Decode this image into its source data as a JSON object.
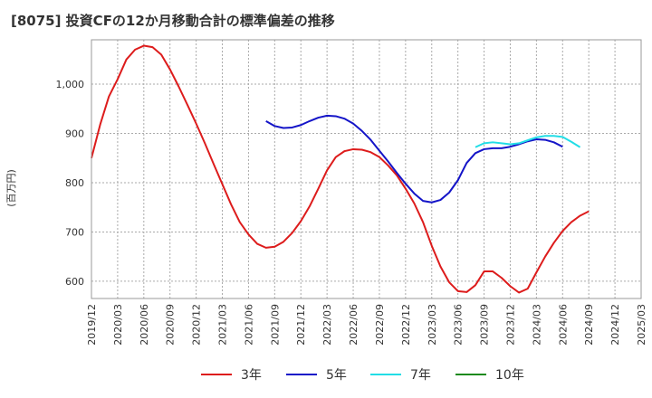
{
  "chart_data": {
    "type": "line",
    "title": "[8075]  投資CFの12か月移動合計の標準偏差の推移",
    "ylabel": "(百万円)",
    "xlabel": "",
    "ylim": [
      565,
      1090
    ],
    "yticks": [
      600,
      700,
      800,
      900,
      1000
    ],
    "ytick_labels": [
      "600",
      "700",
      "800",
      "900",
      "1,000"
    ],
    "x_tick_labels": [
      "2019/12",
      "2020/03",
      "2020/06",
      "2020/09",
      "2020/12",
      "2021/03",
      "2021/06",
      "2021/09",
      "2021/12",
      "2022/03",
      "2022/06",
      "2022/09",
      "2022/12",
      "2023/03",
      "2023/06",
      "2023/09",
      "2023/12",
      "2024/03",
      "2024/06",
      "2024/09",
      "2024/12",
      "2025/03"
    ],
    "grid": true,
    "legend_position": "bottom",
    "series": [
      {
        "name": "3年",
        "color": "#dd1c1c",
        "start": "2019/12",
        "values": [
          850,
          918,
          975,
          1010,
          1050,
          1070,
          1078,
          1075,
          1060,
          1030,
          995,
          958,
          920,
          880,
          838,
          797,
          756,
          720,
          695,
          676,
          668,
          670,
          680,
          698,
          722,
          752,
          788,
          825,
          852,
          864,
          868,
          867,
          862,
          852,
          835,
          815,
          788,
          758,
          720,
          672,
          630,
          598,
          580,
          578,
          592,
          620,
          620,
          607,
          590,
          577,
          585,
          618,
          650,
          678,
          702,
          720,
          733,
          742
        ]
      },
      {
        "name": "5年",
        "color": "#1414c8",
        "start": "2021/08",
        "values": [
          925,
          915,
          911,
          912,
          917,
          925,
          932,
          936,
          935,
          930,
          920,
          905,
          887,
          865,
          843,
          820,
          798,
          778,
          763,
          760,
          765,
          780,
          805,
          840,
          860,
          868,
          870,
          870,
          873,
          878,
          884,
          888,
          887,
          882,
          873
        ]
      },
      {
        "name": "7年",
        "color": "#22dde6",
        "start": "2023/08",
        "values": [
          872,
          880,
          882,
          880,
          878,
          880,
          886,
          892,
          895,
          895,
          893,
          883,
          872
        ]
      },
      {
        "name": "10年",
        "color": "#1d8a1d",
        "start": "",
        "values": []
      }
    ]
  }
}
